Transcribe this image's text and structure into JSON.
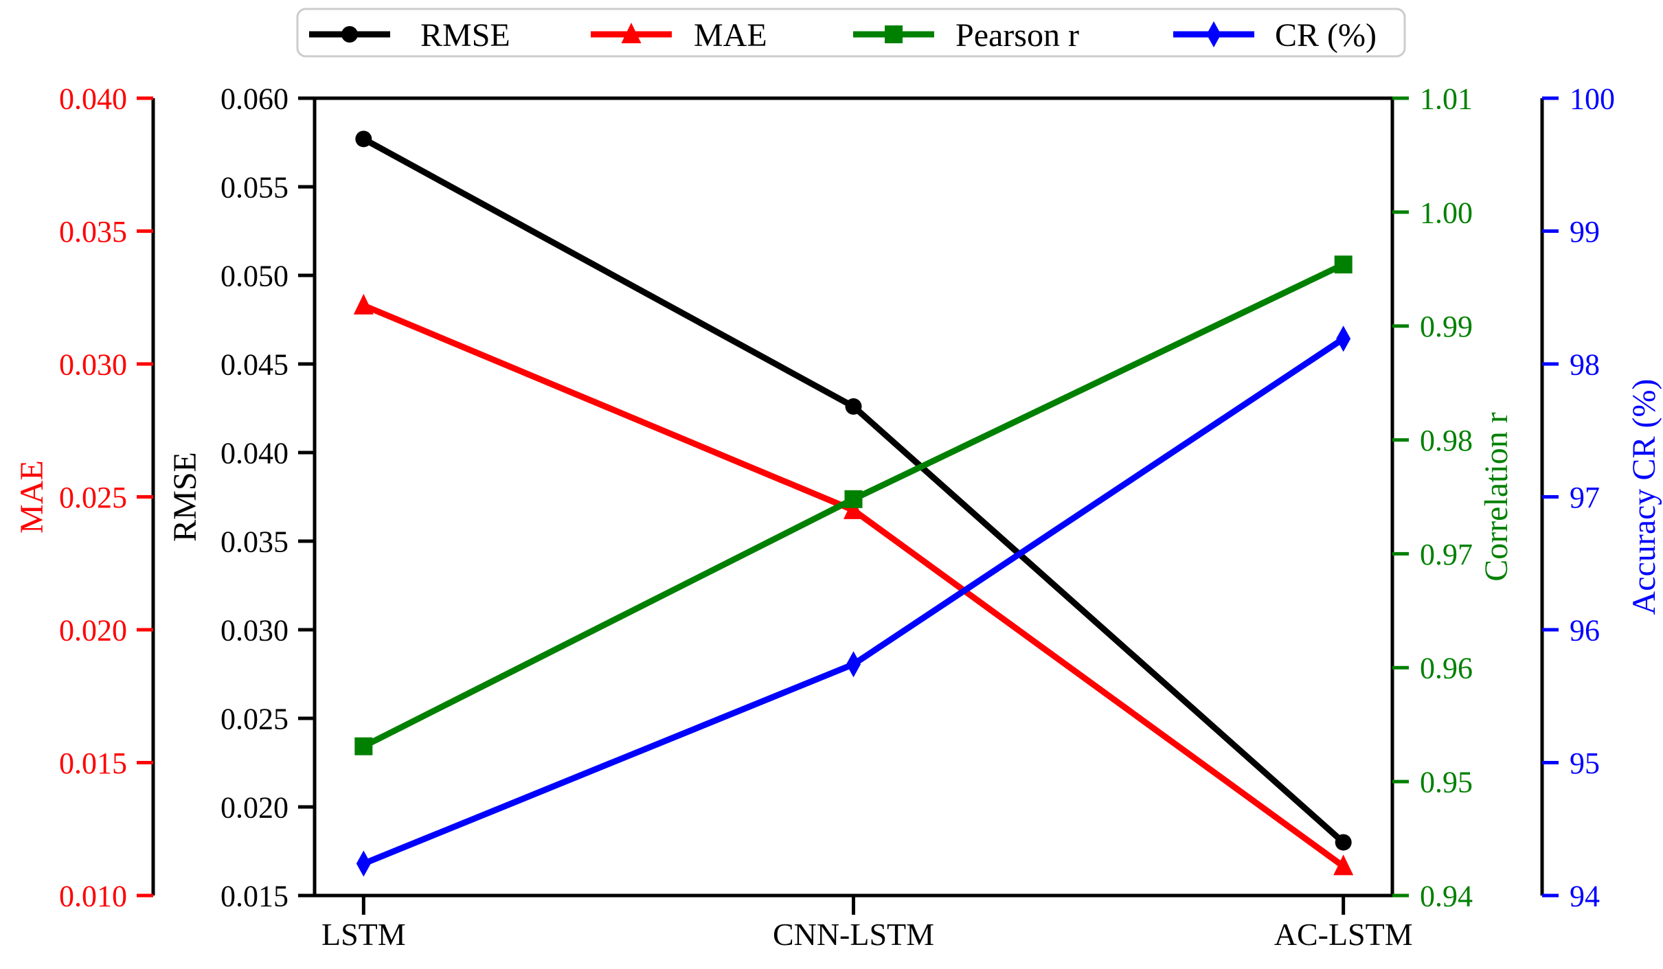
{
  "figure": {
    "background": "#ffffff",
    "frame_color": "#000000",
    "legend": {
      "border_color": "#cccccc",
      "fill": "#ffffff",
      "items": [
        {
          "label": "RMSE",
          "color": "#000000",
          "marker": "circle"
        },
        {
          "label": "MAE",
          "color": "#ff0000",
          "marker": "triangle"
        },
        {
          "label": "Pearson r",
          "color": "#008000",
          "marker": "square"
        },
        {
          "label": "CR (%)",
          "color": "#0000ff",
          "marker": "diamond"
        }
      ]
    }
  },
  "chart_data": {
    "type": "line",
    "title": "",
    "xlabel": "",
    "grid": false,
    "legend_position": "upper center, above plot",
    "categories": [
      "LSTM",
      "CNN-LSTM",
      "AC-LSTM"
    ],
    "xlim": [
      -0.1,
      2.1
    ],
    "axes": {
      "rmse": {
        "label": "RMSE",
        "color": "#000000",
        "side": "left",
        "position": "plot-left-spine",
        "min": 0.015,
        "max": 0.06,
        "tick_values": [
          0.06,
          0.055,
          0.05,
          0.045,
          0.04,
          0.035,
          0.03,
          0.025,
          0.02,
          0.015
        ],
        "tick_labels": [
          "0.060",
          "0.055",
          "0.050",
          "0.045",
          "0.040",
          "0.035",
          "0.030",
          "0.025",
          "0.020",
          "0.015"
        ]
      },
      "mae": {
        "label": "MAE",
        "color": "#ff0000",
        "side": "left",
        "position": "outer-left-spine",
        "min": 0.01,
        "max": 0.04,
        "tick_values": [
          0.04,
          0.035,
          0.03,
          0.025,
          0.02,
          0.015,
          0.01
        ],
        "tick_labels": [
          "0.040",
          "0.035",
          "0.030",
          "0.025",
          "0.020",
          "0.015",
          "0.010"
        ]
      },
      "corr": {
        "label": "Correlation r",
        "color": "#008000",
        "side": "right",
        "position": "plot-right-spine",
        "min": 0.94,
        "max": 1.01,
        "tick_values": [
          1.01,
          1.0,
          0.99,
          0.98,
          0.97,
          0.96,
          0.95,
          0.94
        ],
        "tick_labels": [
          "1.01",
          "1.00",
          "0.99",
          "0.98",
          "0.97",
          "0.96",
          "0.95",
          "0.94"
        ]
      },
      "cr": {
        "label": "Accuracy CR (%)",
        "color": "#0000ff",
        "side": "right",
        "position": "outer-right-spine",
        "min": 94,
        "max": 100,
        "tick_values": [
          100,
          99,
          98,
          97,
          96,
          95,
          94
        ],
        "tick_labels": [
          "100",
          "99",
          "98",
          "97",
          "96",
          "95",
          "94"
        ]
      }
    },
    "series": [
      {
        "name": "RMSE",
        "axis": "rmse",
        "color": "#000000",
        "marker": "circle",
        "values": [
          0.0577,
          0.0426,
          0.018
        ]
      },
      {
        "name": "MAE",
        "axis": "mae",
        "color": "#ff0000",
        "marker": "triangle",
        "values": [
          0.0322,
          0.0245,
          0.0111
        ]
      },
      {
        "name": "Pearson r",
        "axis": "corr",
        "color": "#008000",
        "marker": "square",
        "values": [
          0.9531,
          0.9748,
          0.9954
        ]
      },
      {
        "name": "CR (%)",
        "axis": "cr",
        "color": "#0000ff",
        "marker": "diamond",
        "values": [
          94.24,
          95.74,
          98.19
        ]
      }
    ]
  }
}
